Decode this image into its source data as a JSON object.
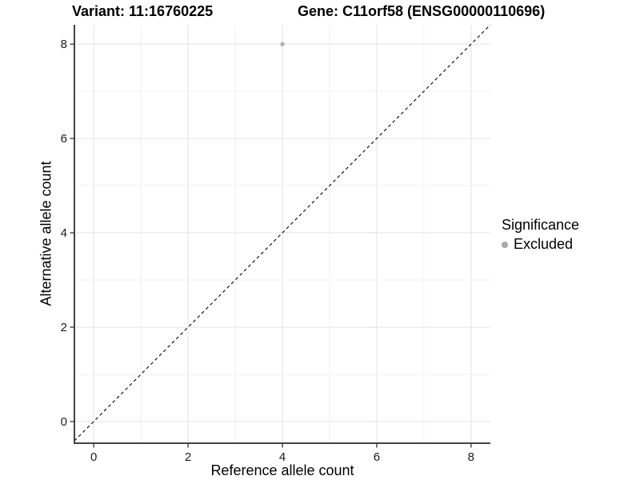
{
  "chart_data": {
    "type": "scatter",
    "titles": {
      "left": "Variant: 11:16760225",
      "right": "Gene: C11orf58 (ENSG00000110696)"
    },
    "xlabel": "Reference allele count",
    "ylabel": "Alternative allele count",
    "xlim": [
      -0.41,
      8.41
    ],
    "ylim": [
      -0.46,
      8.41
    ],
    "x_ticks": [
      0,
      2,
      4,
      6,
      8
    ],
    "y_ticks": [
      0,
      2,
      4,
      6,
      8
    ],
    "x_minor": [
      1,
      3,
      5,
      7
    ],
    "y_minor": [
      1,
      3,
      5,
      7
    ],
    "grid": "major and minor, every 1 unit",
    "identity_line": {
      "type": "abline",
      "slope": 1,
      "intercept": 0,
      "style": "dashed",
      "color": "#000000"
    },
    "series": [
      {
        "name": "Excluded",
        "color": "#b1b1b1",
        "points": [
          {
            "x": 4,
            "y": 8
          }
        ]
      }
    ],
    "legend": {
      "title": "Significance",
      "position": "right",
      "items": [
        {
          "label": "Excluded",
          "color": "#a9a9a9"
        }
      ]
    }
  },
  "colors": {
    "background": "#ffffff",
    "grid_major": "#e3e3e3",
    "grid_minor": "#f0f0f0",
    "axis_line": "#444444",
    "tick_mark": "#333333",
    "tick_label": "#1a1a1a",
    "text": "#000000"
  }
}
